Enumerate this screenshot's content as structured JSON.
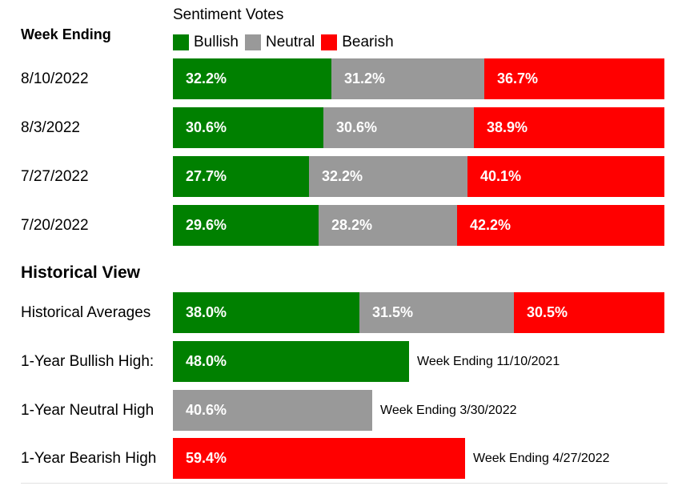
{
  "colors": {
    "bullish": "#008000",
    "neutral": "#999999",
    "bearish": "#ff0000"
  },
  "legend": {
    "title": "Sentiment Votes",
    "items": [
      {
        "key": "bullish",
        "label": "Bullish"
      },
      {
        "key": "neutral",
        "label": "Neutral"
      },
      {
        "key": "bearish",
        "label": "Bearish"
      }
    ]
  },
  "headings": {
    "week_ending": "Week Ending",
    "historical_view": "Historical View"
  },
  "chart_data": {
    "type": "bar",
    "stacked": true,
    "orientation": "horizontal",
    "title": "Sentiment Votes",
    "series_names": [
      "Bullish",
      "Neutral",
      "Bearish"
    ],
    "weekly": [
      {
        "label": "8/10/2022",
        "values": [
          32.2,
          31.2,
          36.7
        ],
        "labels": [
          "32.2%",
          "31.2%",
          "36.7%"
        ]
      },
      {
        "label": "8/3/2022",
        "values": [
          30.6,
          30.6,
          38.9
        ],
        "labels": [
          "30.6%",
          "30.6%",
          "38.9%"
        ]
      },
      {
        "label": "7/27/2022",
        "values": [
          27.7,
          32.2,
          40.1
        ],
        "labels": [
          "27.7%",
          "32.2%",
          "40.1%"
        ]
      },
      {
        "label": "7/20/2022",
        "values": [
          29.6,
          28.2,
          42.2
        ],
        "labels": [
          "29.6%",
          "28.2%",
          "42.2%"
        ]
      }
    ],
    "historical": [
      {
        "label": "Historical Averages",
        "values": [
          38.0,
          31.5,
          30.5
        ],
        "labels": [
          "38.0%",
          "31.5%",
          "30.5%"
        ],
        "note": ""
      },
      {
        "label": "1-Year Bullish High:",
        "series": "bullish",
        "value": 48.0,
        "value_label": "48.0%",
        "note": "Week Ending 11/10/2021"
      },
      {
        "label": "1-Year Neutral High",
        "series": "neutral",
        "value": 40.6,
        "value_label": "40.6%",
        "note": "Week Ending 3/30/2022"
      },
      {
        "label": "1-Year Bearish High",
        "series": "bearish",
        "value": 59.4,
        "value_label": "59.4%",
        "note": "Week Ending 4/27/2022"
      }
    ]
  }
}
